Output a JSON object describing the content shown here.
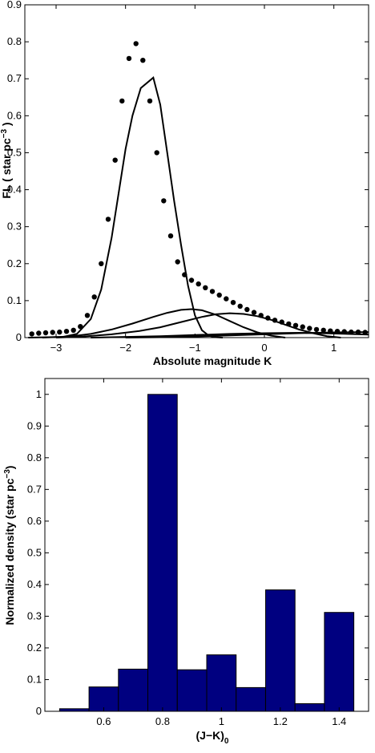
{
  "chart_data": [
    {
      "type": "scatter",
      "xlabel": "Absolute magnitude K",
      "ylabel": "FL ( star pc",
      "ylabel_sup": "−3",
      "ylabel_close": " )",
      "xlim": [
        -3.45,
        1.5
      ],
      "ylim": [
        0,
        0.9
      ],
      "xticks": [
        -3,
        -2,
        -1,
        0,
        1
      ],
      "xtick_labels": [
        "−3",
        "−2",
        "−1",
        "0",
        "1"
      ],
      "yticks": [
        0,
        0.1,
        0.2,
        0.3,
        0.4,
        0.5,
        0.6,
        0.7,
        0.8,
        0.9
      ],
      "ytick_labels": [
        "0",
        "0.1",
        "0.2",
        "0.3",
        "0.4",
        "0.5",
        "0.6",
        "0.7",
        "0.8",
        "0.9"
      ],
      "grid": false,
      "marker_color": "#000000",
      "observed_points": {
        "x": [
          -3.35,
          -3.25,
          -3.15,
          -3.05,
          -2.95,
          -2.85,
          -2.75,
          -2.65,
          -2.55,
          -2.45,
          -2.35,
          -2.25,
          -2.15,
          -2.05,
          -1.95,
          -1.85,
          -1.75,
          -1.65,
          -1.55,
          -1.45,
          -1.35,
          -1.25,
          -1.15,
          -1.05,
          -0.95,
          -0.85,
          -0.75,
          -0.65,
          -0.55,
          -0.45,
          -0.35,
          -0.25,
          -0.15,
          -0.05,
          0.05,
          0.15,
          0.25,
          0.35,
          0.45,
          0.55,
          0.65,
          0.75,
          0.85,
          0.95,
          1.05,
          1.15,
          1.25,
          1.35,
          1.45
        ],
        "y": [
          0.01,
          0.012,
          0.013,
          0.014,
          0.015,
          0.017,
          0.02,
          0.03,
          0.06,
          0.11,
          0.2,
          0.32,
          0.48,
          0.64,
          0.755,
          0.795,
          0.75,
          0.64,
          0.5,
          0.37,
          0.275,
          0.205,
          0.17,
          0.155,
          0.145,
          0.135,
          0.125,
          0.115,
          0.105,
          0.095,
          0.085,
          0.076,
          0.068,
          0.06,
          0.053,
          0.047,
          0.042,
          0.037,
          0.033,
          0.029,
          0.025,
          0.022,
          0.02,
          0.018,
          0.017,
          0.016,
          0.015,
          0.015,
          0.014
        ]
      },
      "curves": [
        {
          "x": [
            -3.4,
            -2.9,
            -2.7,
            -2.5,
            -2.35,
            -2.2,
            -2.1,
            -2.0,
            -1.9,
            -1.78,
            -1.6,
            -1.5,
            -1.4,
            -1.3,
            -1.2,
            -1.1,
            -1.0,
            -0.9,
            -0.8,
            -0.7,
            -0.6
          ],
          "y": [
            0,
            0.002,
            0.01,
            0.05,
            0.13,
            0.27,
            0.39,
            0.51,
            0.6,
            0.675,
            0.703,
            0.63,
            0.5,
            0.37,
            0.25,
            0.14,
            0.06,
            0.02,
            0.005,
            0.001,
            0
          ]
        },
        {
          "x": [
            -3.2,
            -2.8,
            -2.5,
            -2.2,
            -1.9,
            -1.6,
            -1.4,
            -1.2,
            -1.05,
            -0.9,
            -0.7,
            -0.5,
            -0.3,
            -0.1,
            0.1,
            0.3
          ],
          "y": [
            0,
            0.003,
            0.01,
            0.022,
            0.038,
            0.056,
            0.067,
            0.075,
            0.077,
            0.074,
            0.062,
            0.045,
            0.028,
            0.014,
            0.005,
            0
          ]
        },
        {
          "x": [
            -3.0,
            -2.6,
            -2.2,
            -1.8,
            -1.5,
            -1.2,
            -0.9,
            -0.7,
            -0.5,
            -0.3,
            -0.1,
            0.1,
            0.3,
            0.5,
            0.7,
            0.9,
            1.1
          ],
          "y": [
            0,
            0.003,
            0.009,
            0.018,
            0.028,
            0.042,
            0.056,
            0.063,
            0.066,
            0.064,
            0.058,
            0.048,
            0.035,
            0.022,
            0.012,
            0.004,
            0
          ]
        },
        {
          "x": [
            -2.5,
            -2.0,
            -1.5,
            -1.0,
            -0.5,
            0.0,
            0.5,
            1.0,
            1.5
          ],
          "y": [
            0,
            0.002,
            0.004,
            0.007,
            0.01,
            0.012,
            0.013,
            0.011,
            0.008
          ]
        },
        {
          "x": [
            -2.0,
            -1.5,
            -1.0,
            -0.5,
            0.0,
            0.5,
            1.0,
            1.5
          ],
          "y": [
            0,
            0.001,
            0.003,
            0.006,
            0.009,
            0.012,
            0.014,
            0.015
          ]
        }
      ]
    },
    {
      "type": "bar",
      "xlabel": "(J−K)",
      "xlabel_sub": "0",
      "ylabel": "Normalized density (star pc",
      "ylabel_sup": "−3",
      "ylabel_close": ")",
      "xlim": [
        0.4,
        1.5
      ],
      "ylim": [
        0,
        1.05
      ],
      "xticks": [
        0.6,
        0.8,
        1.0,
        1.2,
        1.4
      ],
      "xtick_labels": [
        "0.6",
        "0.8",
        "1",
        "1.2",
        "1.4"
      ],
      "yticks": [
        0,
        0.1,
        0.2,
        0.3,
        0.4,
        0.5,
        0.6,
        0.7,
        0.8,
        0.9,
        1.0
      ],
      "ytick_labels": [
        "0",
        "0.1",
        "0.2",
        "0.3",
        "0.4",
        "0.5",
        "0.6",
        "0.7",
        "0.8",
        "0.9",
        "1"
      ],
      "grid": false,
      "bar_color": "#000080",
      "bin_width": 0.1,
      "bin_centers": [
        0.5,
        0.6,
        0.7,
        0.8,
        0.9,
        1.0,
        1.1,
        1.2,
        1.3,
        1.4
      ],
      "values": [
        0.008,
        0.077,
        0.133,
        1.0,
        0.131,
        0.178,
        0.075,
        0.383,
        0.024,
        0.312
      ]
    }
  ]
}
